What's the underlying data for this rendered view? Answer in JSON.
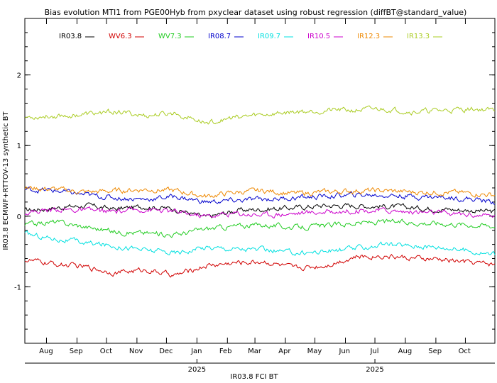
{
  "chart_data": {
    "type": "line",
    "title": "Bias evolution MTI1 from PGE00Hyb from pxyclear dataset using robust regression (diffBT@standard_value)",
    "ylabel": "IR03.8 ECMWF+RTTOV-13 synthetic BT",
    "xlabel": "IR03.8 FCI BT",
    "ylim": [
      -1.8,
      2.8
    ],
    "yticks": [
      -1,
      0,
      1,
      2
    ],
    "ytick_labels": [
      "-1",
      "0",
      "1",
      "2"
    ],
    "grid": false,
    "legend_position": "top",
    "x_start": "2024-07-10",
    "x_end": "2025-10-31",
    "month_ticks": [
      {
        "label": "Aug",
        "date": "2024-08-01"
      },
      {
        "label": "Sep",
        "date": "2024-09-01"
      },
      {
        "label": "Oct",
        "date": "2024-10-01"
      },
      {
        "label": "Nov",
        "date": "2024-11-01"
      },
      {
        "label": "Dec",
        "date": "2024-12-01"
      },
      {
        "label": "Jan",
        "date": "2025-01-01"
      },
      {
        "label": "Feb",
        "date": "2025-02-01"
      },
      {
        "label": "Mar",
        "date": "2025-03-01"
      },
      {
        "label": "Apr",
        "date": "2025-04-01"
      },
      {
        "label": "May",
        "date": "2025-05-01"
      },
      {
        "label": "Jun",
        "date": "2025-06-01"
      },
      {
        "label": "Jul",
        "date": "2025-07-01"
      },
      {
        "label": "Aug",
        "date": "2025-08-01"
      },
      {
        "label": "Sep",
        "date": "2025-09-01"
      },
      {
        "label": "Oct",
        "date": "2025-10-01"
      }
    ],
    "year_ticks": [
      {
        "label": "2025",
        "date": "2025-01-01"
      },
      {
        "label": "2025",
        "date": "2025-07-01"
      }
    ],
    "series": [
      {
        "name": "IR03.8",
        "color": "#000000",
        "x": [
          "2024-07-10",
          "2024-08-10",
          "2024-09-10",
          "2024-10-10",
          "2024-11-10",
          "2024-12-10",
          "2025-01-10",
          "2025-02-10",
          "2025-03-10",
          "2025-04-10",
          "2025-05-10",
          "2025-06-10",
          "2025-07-10",
          "2025-08-10",
          "2025-09-10",
          "2025-10-10",
          "2025-10-31"
        ],
        "y": [
          0.08,
          0.12,
          0.15,
          0.1,
          0.14,
          0.1,
          -0.02,
          0.08,
          0.1,
          0.12,
          0.15,
          0.15,
          0.14,
          0.12,
          0.1,
          0.08,
          0.06
        ]
      },
      {
        "name": "WV6.3",
        "color": "#d10000",
        "x": [
          "2024-07-10",
          "2024-08-10",
          "2024-09-10",
          "2024-10-10",
          "2024-11-10",
          "2024-12-10",
          "2025-01-10",
          "2025-02-10",
          "2025-03-10",
          "2025-04-10",
          "2025-05-10",
          "2025-06-10",
          "2025-07-10",
          "2025-08-10",
          "2025-09-10",
          "2025-10-10",
          "2025-10-31"
        ],
        "y": [
          -0.62,
          -0.68,
          -0.72,
          -0.8,
          -0.76,
          -0.84,
          -0.7,
          -0.66,
          -0.64,
          -0.74,
          -0.7,
          -0.58,
          -0.56,
          -0.6,
          -0.62,
          -0.66,
          -0.68
        ]
      },
      {
        "name": "WV7.3",
        "color": "#22cc22",
        "x": [
          "2024-07-10",
          "2024-08-10",
          "2024-09-10",
          "2024-10-10",
          "2024-11-10",
          "2024-12-10",
          "2025-01-10",
          "2025-02-10",
          "2025-03-10",
          "2025-04-10",
          "2025-05-10",
          "2025-06-10",
          "2025-07-10",
          "2025-08-10",
          "2025-09-10",
          "2025-10-10",
          "2025-10-31"
        ],
        "y": [
          -0.12,
          -0.08,
          -0.15,
          -0.22,
          -0.24,
          -0.26,
          -0.18,
          -0.14,
          -0.12,
          -0.16,
          -0.14,
          -0.1,
          -0.08,
          -0.09,
          -0.1,
          -0.12,
          -0.14
        ]
      },
      {
        "name": "IR08.7",
        "color": "#0000cc",
        "x": [
          "2024-07-10",
          "2024-08-10",
          "2024-09-10",
          "2024-10-10",
          "2024-11-10",
          "2024-12-10",
          "2025-01-10",
          "2025-02-10",
          "2025-03-10",
          "2025-04-10",
          "2025-05-10",
          "2025-06-10",
          "2025-07-10",
          "2025-08-10",
          "2025-09-10",
          "2025-10-10",
          "2025-10-31"
        ],
        "y": [
          0.38,
          0.36,
          0.3,
          0.26,
          0.24,
          0.28,
          0.2,
          0.22,
          0.24,
          0.26,
          0.28,
          0.3,
          0.3,
          0.28,
          0.27,
          0.24,
          0.2
        ]
      },
      {
        "name": "IR09.7",
        "color": "#00e0e0",
        "x": [
          "2024-07-10",
          "2024-08-10",
          "2024-09-10",
          "2024-10-10",
          "2024-11-10",
          "2024-12-10",
          "2025-01-10",
          "2025-02-10",
          "2025-03-10",
          "2025-04-10",
          "2025-05-10",
          "2025-06-10",
          "2025-07-10",
          "2025-08-10",
          "2025-09-10",
          "2025-10-10",
          "2025-10-31"
        ],
        "y": [
          -0.25,
          -0.32,
          -0.38,
          -0.42,
          -0.48,
          -0.52,
          -0.44,
          -0.46,
          -0.48,
          -0.52,
          -0.5,
          -0.46,
          -0.4,
          -0.42,
          -0.44,
          -0.5,
          -0.54
        ]
      },
      {
        "name": "IR10.5",
        "color": "#cc00cc",
        "x": [
          "2024-07-10",
          "2024-08-10",
          "2024-09-10",
          "2024-10-10",
          "2024-11-10",
          "2024-12-10",
          "2025-01-10",
          "2025-02-10",
          "2025-03-10",
          "2025-04-10",
          "2025-05-10",
          "2025-06-10",
          "2025-07-10",
          "2025-08-10",
          "2025-09-10",
          "2025-10-10",
          "2025-10-31"
        ],
        "y": [
          0.05,
          0.1,
          0.08,
          0.06,
          0.1,
          0.06,
          0.0,
          0.04,
          0.02,
          0.04,
          0.06,
          0.08,
          0.08,
          0.06,
          0.04,
          0.02,
          0.0
        ]
      },
      {
        "name": "IR12.3",
        "color": "#ee8800",
        "x": [
          "2024-07-10",
          "2024-08-10",
          "2024-09-10",
          "2024-10-10",
          "2024-11-10",
          "2024-12-10",
          "2025-01-10",
          "2025-02-10",
          "2025-03-10",
          "2025-04-10",
          "2025-05-10",
          "2025-06-10",
          "2025-07-10",
          "2025-08-10",
          "2025-09-10",
          "2025-10-10",
          "2025-10-31"
        ],
        "y": [
          0.4,
          0.38,
          0.34,
          0.36,
          0.38,
          0.36,
          0.28,
          0.34,
          0.36,
          0.32,
          0.34,
          0.36,
          0.36,
          0.34,
          0.34,
          0.32,
          0.3
        ]
      },
      {
        "name": "IR13.3",
        "color": "#aacc22",
        "x": [
          "2024-07-10",
          "2024-08-10",
          "2024-09-10",
          "2024-10-10",
          "2024-11-10",
          "2024-12-10",
          "2025-01-10",
          "2025-02-10",
          "2025-03-10",
          "2025-04-10",
          "2025-05-10",
          "2025-06-10",
          "2025-07-10",
          "2025-08-10",
          "2025-09-10",
          "2025-10-10",
          "2025-10-31"
        ],
        "y": [
          1.4,
          1.42,
          1.44,
          1.48,
          1.42,
          1.46,
          1.32,
          1.4,
          1.44,
          1.48,
          1.5,
          1.5,
          1.52,
          1.48,
          1.5,
          1.52,
          1.5
        ]
      }
    ]
  }
}
